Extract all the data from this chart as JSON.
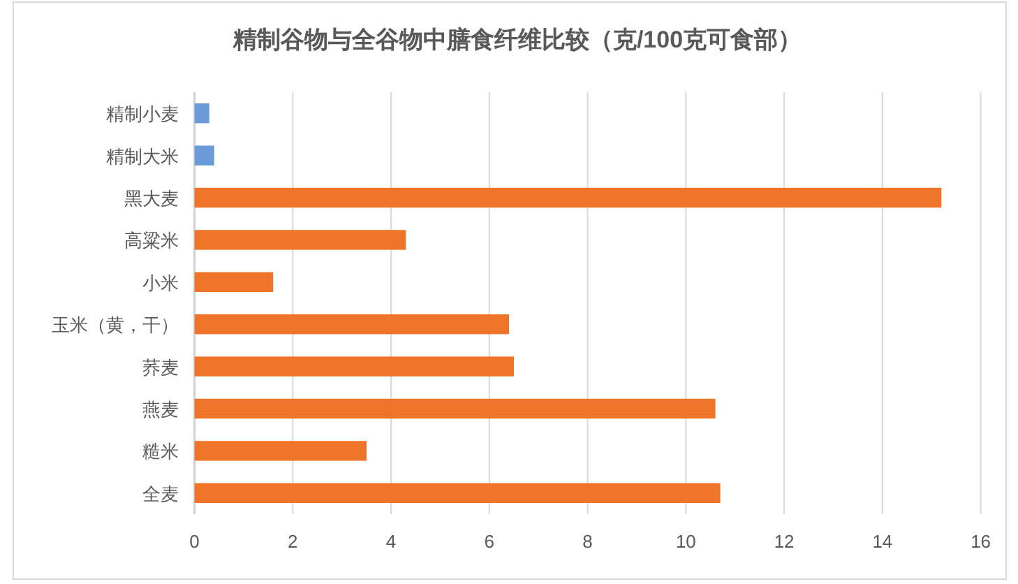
{
  "chart_data": {
    "type": "bar",
    "orientation": "horizontal",
    "title": "精制谷物与全谷物中膳食纤维比较（克/100克可食部）",
    "categories": [
      "精制小麦",
      "精制大米",
      "黑大麦",
      "高粱米",
      "小米",
      "玉米（黄，干）",
      "荞麦",
      "燕麦",
      "糙米",
      "全麦"
    ],
    "values": [
      0.3,
      0.4,
      15.2,
      4.3,
      1.6,
      6.4,
      6.5,
      10.6,
      3.5,
      10.7
    ],
    "colors": [
      "#6a9bd8",
      "#6a9bd8",
      "#ed7428",
      "#ed7428",
      "#ed7428",
      "#ed7428",
      "#ed7428",
      "#ed7428",
      "#ed7428",
      "#ed7428"
    ],
    "xlim": [
      0,
      16
    ],
    "xticks": [
      0,
      2,
      4,
      6,
      8,
      10,
      12,
      14,
      16
    ],
    "grid": "x"
  }
}
